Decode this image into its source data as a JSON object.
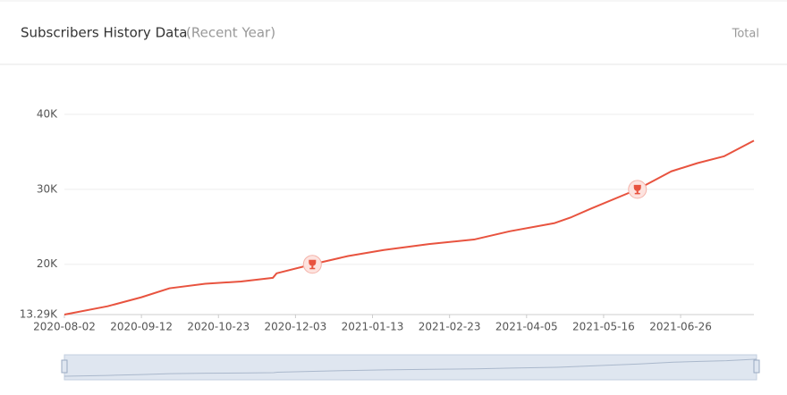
{
  "header": {
    "title": "Subscribers History Data",
    "subtitle": "(Recent Year)",
    "toggle": "Total"
  },
  "chart_data": {
    "type": "line",
    "x": [
      "2020-08-02",
      "2020-08-25",
      "2020-09-12",
      "2020-09-27",
      "2020-10-16",
      "2020-11-04",
      "2020-11-21",
      "2020-11-23",
      "2020-12-12",
      "2020-12-31",
      "2021-01-19",
      "2021-02-12",
      "2021-03-08",
      "2021-03-27",
      "2021-04-20",
      "2021-04-29",
      "2021-05-09",
      "2021-06-03",
      "2021-06-21",
      "2021-07-05",
      "2021-07-19",
      "2021-08-04"
    ],
    "series": [
      {
        "name": "Subscribers",
        "color": "#e8533f",
        "values": [
          13290,
          14400,
          15600,
          16800,
          17400,
          17700,
          18200,
          18800,
          20000,
          21100,
          21900,
          22700,
          23300,
          24400,
          25500,
          26300,
          27400,
          30000,
          32400,
          33500,
          34400,
          36500
        ]
      }
    ],
    "milestones": [
      {
        "x": "2020-12-12",
        "value": 20000
      },
      {
        "x": "2021-06-03",
        "value": 30000
      }
    ],
    "xlim": [
      "2020-08-02",
      "2021-08-04"
    ],
    "xticks": [
      "2020-08-02",
      "2020-09-12",
      "2020-10-23",
      "2020-12-03",
      "2021-01-13",
      "2021-02-23",
      "2021-04-05",
      "2021-05-16",
      "2021-06-26"
    ],
    "ylim": [
      13290,
      40000
    ],
    "yticks": [
      {
        "value": 13290,
        "label": "13.29K"
      },
      {
        "value": 20000,
        "label": "20K"
      },
      {
        "value": 30000,
        "label": "30K"
      },
      {
        "value": 40000,
        "label": "40K"
      }
    ],
    "grid": true
  }
}
